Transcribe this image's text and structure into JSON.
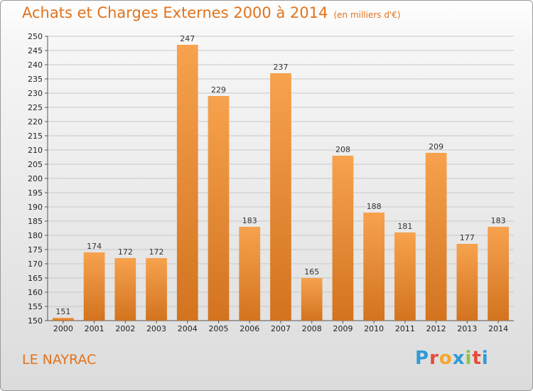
{
  "header": {
    "title": "Achats et Charges Externes 2000 à 2014",
    "unit": "(en milliers d'€)"
  },
  "footer": {
    "commune": "LE NAYRAC",
    "brand": "Proxiti",
    "brand_colors": [
      "#2e9bd6",
      "#e64a3a",
      "#f4a82a",
      "#2e9bd6",
      "#8bc34a",
      "#e64a3a",
      "#2e9bd6"
    ]
  },
  "colors": {
    "bar_light": "#f7a24e",
    "bar_dark": "#d2731f",
    "title": "#e0731c",
    "grid": "#c8c8c8"
  },
  "chart_data": {
    "type": "bar",
    "title": "Achats et Charges Externes 2000 à 2014",
    "subtitle": "(en milliers d'€)",
    "xlabel": "",
    "ylabel": "",
    "categories": [
      "2000",
      "2001",
      "2002",
      "2003",
      "2004",
      "2005",
      "2006",
      "2007",
      "2008",
      "2009",
      "2010",
      "2011",
      "2012",
      "2013",
      "2014"
    ],
    "values": [
      151,
      174,
      172,
      172,
      247,
      229,
      183,
      237,
      165,
      208,
      188,
      181,
      209,
      177,
      183
    ],
    "ylim": [
      150,
      250
    ],
    "ytick_step": 5,
    "grid": true,
    "data_labels": true
  }
}
